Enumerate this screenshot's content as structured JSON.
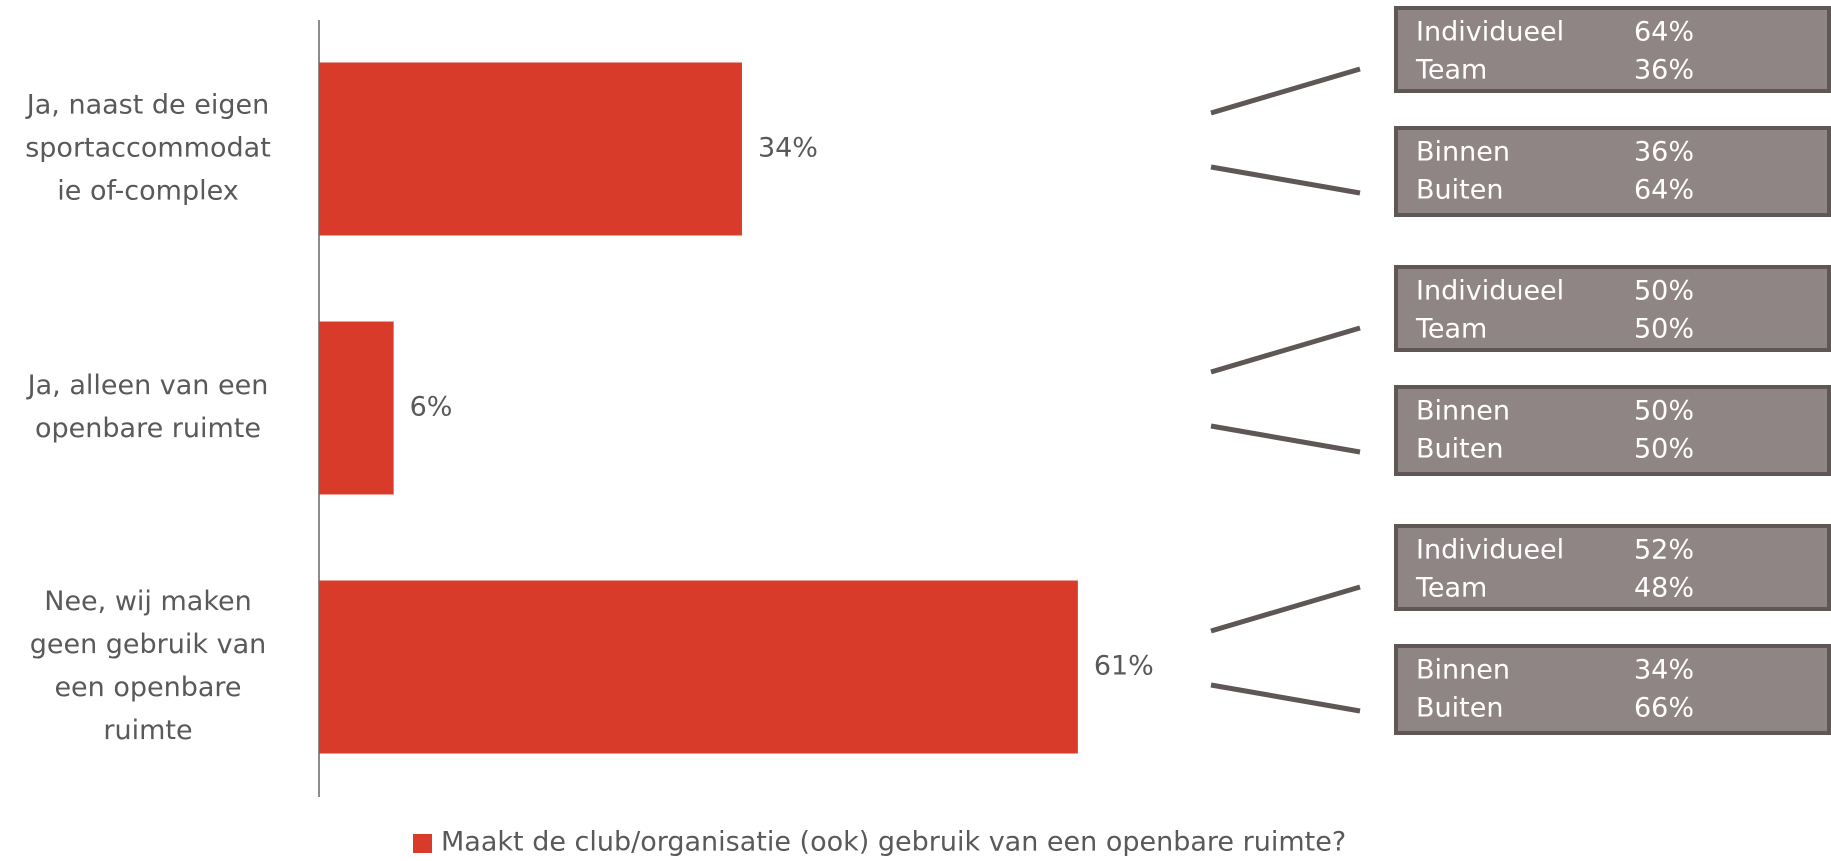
{
  "chart_data": {
    "type": "bar",
    "orientation": "horizontal",
    "categories": [
      [
        "Ja, naast de eigen",
        "sportaccommodat",
        "ie of-complex"
      ],
      [
        "Ja, alleen van een",
        "openbare ruimte"
      ],
      [
        "Nee, wij maken",
        "geen gebruik van",
        "een openbare",
        "ruimte"
      ]
    ],
    "series": [
      {
        "name": "Maakt de club/organisatie (ook) gebruik van een openbare ruimte?",
        "color": "#d93b2a",
        "values": [
          34,
          6,
          61
        ],
        "value_labels": [
          "34%",
          "6%",
          "61%"
        ]
      }
    ],
    "xlim": [
      0,
      100
    ],
    "callouts": [
      [
        [
          [
            "Individueel",
            "64%"
          ],
          [
            "Team",
            "36%"
          ]
        ],
        [
          [
            "Binnen",
            "36%"
          ],
          [
            "Buiten",
            "64%"
          ]
        ]
      ],
      [
        [
          [
            "Individueel",
            "50%"
          ],
          [
            "Team",
            "50%"
          ]
        ],
        [
          [
            "Binnen",
            "50%"
          ],
          [
            "Buiten",
            "50%"
          ]
        ]
      ],
      [
        [
          [
            "Individueel",
            "52%"
          ],
          [
            "Team",
            "48%"
          ]
        ],
        [
          [
            "Binnen",
            "34%"
          ],
          [
            "Buiten",
            "66%"
          ]
        ]
      ]
    ],
    "legend": "bottom"
  }
}
